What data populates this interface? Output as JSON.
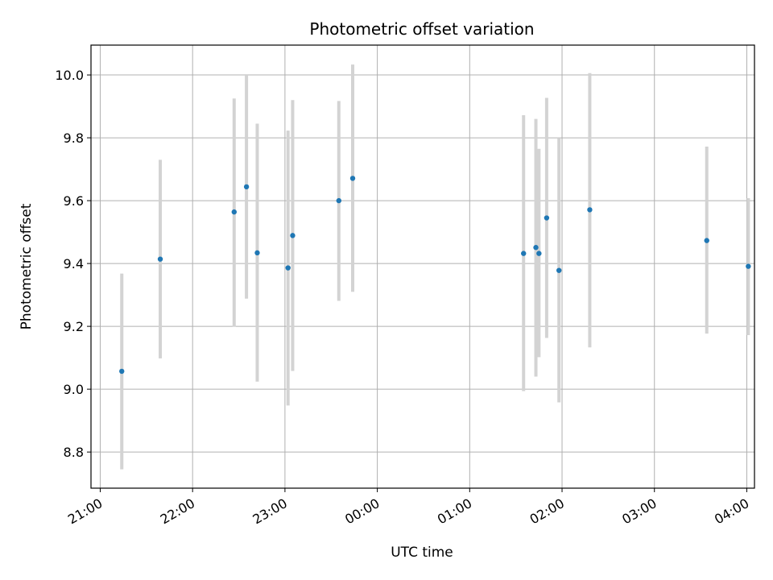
{
  "chart_data": {
    "type": "scatter",
    "title": "Photometric offset variation",
    "xlabel": "UTC time",
    "ylabel": "Photometric offset",
    "x_unit": "UTC time (HH:MM)",
    "xlim": [
      "20:54",
      "04:05"
    ],
    "ylim": [
      8.685,
      10.095
    ],
    "grid": true,
    "xticks": [
      "21:00",
      "22:00",
      "23:00",
      "00:00",
      "01:00",
      "02:00",
      "03:00",
      "04:00"
    ],
    "yticks": [
      "8.8",
      "9.0",
      "9.2",
      "9.4",
      "9.6",
      "9.8",
      "10.0"
    ],
    "colors": {
      "point": "#1f77b4",
      "errorbar": "#d3d3d3",
      "grid": "#b0b0b0"
    },
    "points": [
      {
        "x": "21:14",
        "y": 9.057,
        "yerr_low": 8.745,
        "yerr_high": 9.368
      },
      {
        "x": "21:39",
        "y": 9.414,
        "yerr_low": 9.098,
        "yerr_high": 9.73
      },
      {
        "x": "22:27",
        "y": 9.564,
        "yerr_low": 9.199,
        "yerr_high": 9.925
      },
      {
        "x": "22:35",
        "y": 9.644,
        "yerr_low": 9.288,
        "yerr_high": 9.998
      },
      {
        "x": "22:42",
        "y": 9.434,
        "yerr_low": 9.024,
        "yerr_high": 9.845
      },
      {
        "x": "23:02",
        "y": 9.386,
        "yerr_low": 8.948,
        "yerr_high": 9.823
      },
      {
        "x": "23:05",
        "y": 9.489,
        "yerr_low": 9.058,
        "yerr_high": 9.92
      },
      {
        "x": "23:35",
        "y": 9.6,
        "yerr_low": 9.281,
        "yerr_high": 9.917
      },
      {
        "x": "23:44",
        "y": 9.671,
        "yerr_low": 9.31,
        "yerr_high": 10.033
      },
      {
        "x": "01:35",
        "y": 9.432,
        "yerr_low": 8.994,
        "yerr_high": 9.872
      },
      {
        "x": "01:43",
        "y": 9.451,
        "yerr_low": 9.04,
        "yerr_high": 9.86
      },
      {
        "x": "01:45",
        "y": 9.432,
        "yerr_low": 9.102,
        "yerr_high": 9.765
      },
      {
        "x": "01:50",
        "y": 9.545,
        "yerr_low": 9.163,
        "yerr_high": 9.927
      },
      {
        "x": "01:58",
        "y": 9.378,
        "yerr_low": 8.958,
        "yerr_high": 9.8
      },
      {
        "x": "02:18",
        "y": 9.571,
        "yerr_low": 9.133,
        "yerr_high": 10.006
      },
      {
        "x": "03:34",
        "y": 9.473,
        "yerr_low": 9.177,
        "yerr_high": 9.772
      },
      {
        "x": "04:01",
        "y": 9.391,
        "yerr_low": 9.172,
        "yerr_high": 9.608
      }
    ]
  }
}
